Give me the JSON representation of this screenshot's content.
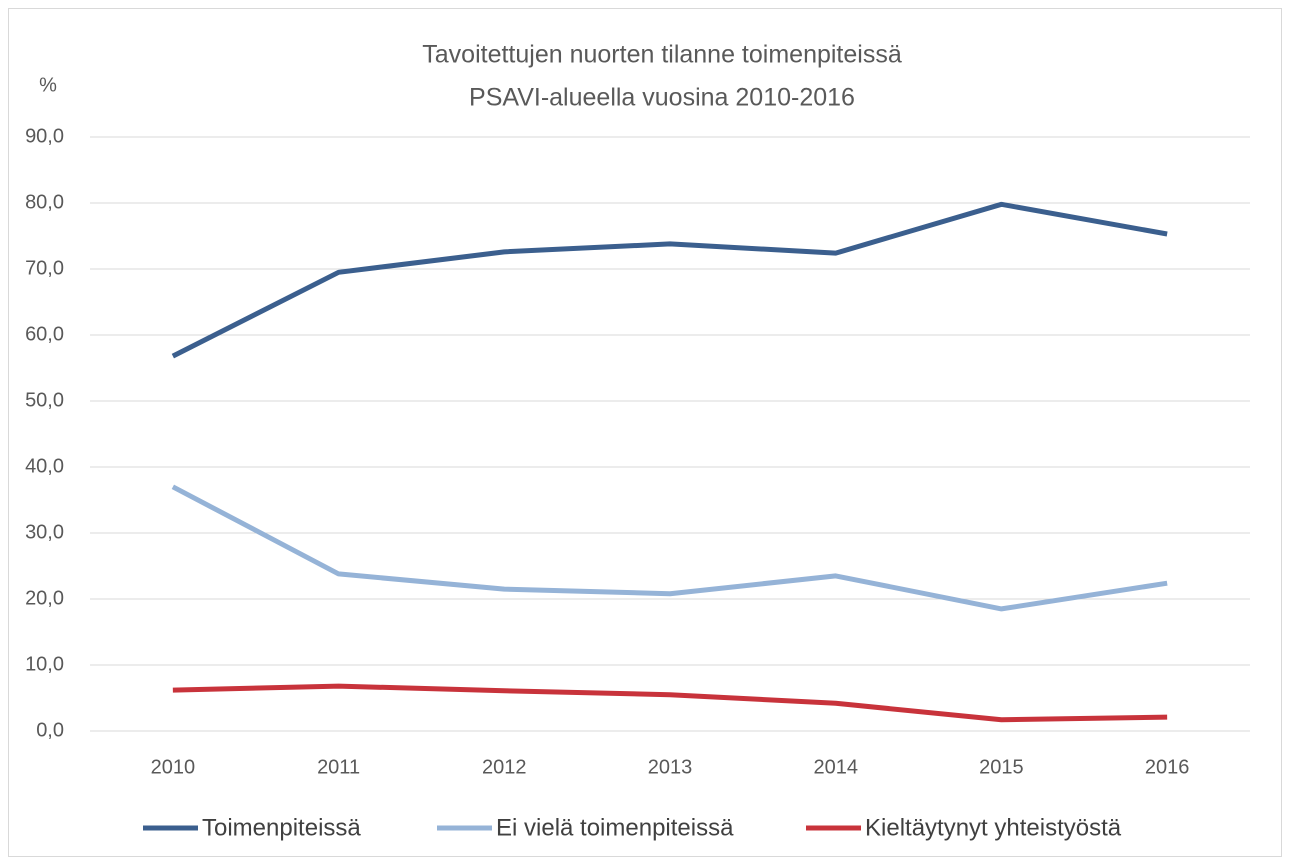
{
  "chart_data": {
    "type": "line",
    "title": [
      "Tavoitettujen nuorten tilanne toimenpiteissä",
      "PSAVI-alueella vuosina 2010-2016"
    ],
    "y_label": "%",
    "categories": [
      "2010",
      "2011",
      "2012",
      "2013",
      "2014",
      "2015",
      "2016"
    ],
    "series": [
      {
        "name": "Toimenpiteissä",
        "color": "#3b5f8e",
        "values": [
          56.8,
          69.5,
          72.6,
          73.8,
          72.4,
          79.8,
          75.3
        ]
      },
      {
        "name": "Ei vielä toimenpiteissä",
        "color": "#95b3d7",
        "values": [
          37.0,
          23.8,
          21.5,
          20.8,
          23.5,
          18.5,
          22.4
        ]
      },
      {
        "name": "Kieltäytynyt yhteistyöstä",
        "color": "#c8333b",
        "values": [
          6.2,
          6.8,
          6.1,
          5.5,
          4.2,
          1.7,
          2.1
        ]
      }
    ],
    "ylim": [
      0,
      90
    ],
    "yticks": [
      {
        "value": 0,
        "label": "0,0"
      },
      {
        "value": 10,
        "label": "10,0"
      },
      {
        "value": 20,
        "label": "20,0"
      },
      {
        "value": 30,
        "label": "30,0"
      },
      {
        "value": 40,
        "label": "40,0"
      },
      {
        "value": 50,
        "label": "50,0"
      },
      {
        "value": 60,
        "label": "60,0"
      },
      {
        "value": 70,
        "label": "70,0"
      },
      {
        "value": 80,
        "label": "80,0"
      },
      {
        "value": 90,
        "label": "90,0"
      }
    ],
    "grid": true,
    "legend": "bottom"
  }
}
